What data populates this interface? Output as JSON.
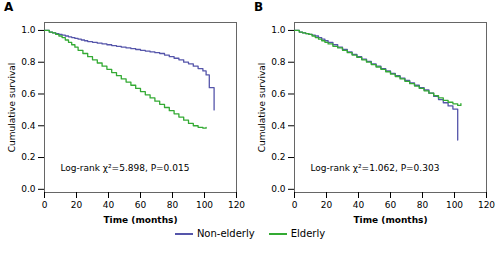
{
  "chart_data": [
    {
      "type": "step",
      "title": "A",
      "annotation": "Log-rank χ²=5.898, P=0.015",
      "xlabel": "Time (months)",
      "ylabel": "Cumulative survival",
      "xlim": [
        0,
        120
      ],
      "ylim": [
        -0.02,
        1.05
      ],
      "xticks": [
        0,
        20,
        40,
        60,
        80,
        100,
        120
      ],
      "yticks": [
        {
          "value": 0.0,
          "label": "0.0"
        },
        0.2,
        0.4,
        0.6,
        0.8,
        {
          "value": 1.0,
          "label": "1.0"
        }
      ],
      "legend": "bottom",
      "series": [
        {
          "name": "Non-elderly",
          "color": "#5555aa",
          "x": [
            0,
            3,
            5,
            7,
            9,
            11,
            13,
            15,
            17,
            19,
            21,
            23,
            25,
            27,
            30,
            33,
            36,
            39,
            42,
            45,
            48,
            51,
            54,
            57,
            60,
            63,
            66,
            69,
            72,
            75,
            78,
            81,
            84,
            87,
            90,
            93,
            96,
            99,
            101,
            103,
            106
          ],
          "values": [
            1.0,
            0.99,
            0.985,
            0.98,
            0.975,
            0.97,
            0.965,
            0.96,
            0.955,
            0.95,
            0.945,
            0.94,
            0.935,
            0.93,
            0.925,
            0.92,
            0.915,
            0.91,
            0.905,
            0.9,
            0.895,
            0.89,
            0.885,
            0.88,
            0.875,
            0.87,
            0.865,
            0.86,
            0.855,
            0.845,
            0.835,
            0.825,
            0.815,
            0.8,
            0.79,
            0.775,
            0.76,
            0.745,
            0.72,
            0.64,
            0.5
          ]
        },
        {
          "name": "Elderly",
          "color": "#33aa33",
          "x": [
            0,
            3,
            5,
            7,
            9,
            11,
            13,
            15,
            17,
            19,
            21,
            24,
            27,
            30,
            33,
            36,
            39,
            42,
            45,
            48,
            51,
            54,
            57,
            60,
            63,
            66,
            69,
            72,
            75,
            78,
            81,
            84,
            87,
            90,
            93,
            96,
            99,
            101
          ],
          "values": [
            1.0,
            0.99,
            0.985,
            0.975,
            0.965,
            0.955,
            0.94,
            0.925,
            0.91,
            0.895,
            0.875,
            0.855,
            0.835,
            0.815,
            0.795,
            0.775,
            0.755,
            0.735,
            0.715,
            0.695,
            0.675,
            0.655,
            0.635,
            0.615,
            0.595,
            0.575,
            0.555,
            0.535,
            0.515,
            0.495,
            0.475,
            0.455,
            0.435,
            0.415,
            0.4,
            0.39,
            0.385,
            0.39
          ]
        }
      ]
    },
    {
      "type": "step",
      "title": "B",
      "annotation": "Log-rank χ²=1.062, P=0.303",
      "xlabel": "Time (months)",
      "ylabel": "Cumulative survival",
      "xlim": [
        0,
        120
      ],
      "ylim": [
        -0.02,
        1.05
      ],
      "xticks": [
        0,
        20,
        40,
        60,
        80,
        100,
        120
      ],
      "yticks": [
        {
          "value": 0.0,
          "label": "0.0"
        },
        0.2,
        0.4,
        0.6,
        0.8,
        {
          "value": 1.0,
          "label": "1.0"
        }
      ],
      "legend": "bottom",
      "series": [
        {
          "name": "Non-elderly",
          "color": "#5555aa",
          "x": [
            0,
            3,
            5,
            7,
            9,
            11,
            13,
            15,
            17,
            19,
            21,
            24,
            27,
            30,
            33,
            36,
            39,
            42,
            45,
            48,
            51,
            54,
            57,
            60,
            63,
            66,
            69,
            72,
            75,
            78,
            81,
            84,
            87,
            90,
            93,
            96,
            99,
            102
          ],
          "values": [
            1.0,
            0.99,
            0.985,
            0.98,
            0.975,
            0.97,
            0.965,
            0.955,
            0.945,
            0.935,
            0.925,
            0.91,
            0.895,
            0.88,
            0.865,
            0.85,
            0.835,
            0.82,
            0.805,
            0.79,
            0.775,
            0.76,
            0.745,
            0.73,
            0.715,
            0.7,
            0.685,
            0.67,
            0.655,
            0.64,
            0.625,
            0.605,
            0.585,
            0.565,
            0.545,
            0.525,
            0.505,
            0.31
          ]
        },
        {
          "name": "Elderly",
          "color": "#33aa33",
          "x": [
            0,
            3,
            5,
            7,
            9,
            11,
            13,
            15,
            17,
            19,
            21,
            24,
            27,
            30,
            33,
            36,
            39,
            42,
            45,
            48,
            51,
            54,
            57,
            60,
            63,
            66,
            69,
            72,
            75,
            78,
            81,
            84,
            87,
            90,
            93,
            96,
            99,
            102,
            104
          ],
          "values": [
            1.0,
            0.99,
            0.985,
            0.98,
            0.975,
            0.965,
            0.955,
            0.945,
            0.935,
            0.925,
            0.915,
            0.9,
            0.89,
            0.875,
            0.86,
            0.845,
            0.83,
            0.815,
            0.8,
            0.785,
            0.77,
            0.755,
            0.74,
            0.725,
            0.71,
            0.695,
            0.68,
            0.665,
            0.65,
            0.635,
            0.62,
            0.605,
            0.59,
            0.575,
            0.56,
            0.548,
            0.538,
            0.528,
            0.54
          ]
        }
      ]
    }
  ]
}
